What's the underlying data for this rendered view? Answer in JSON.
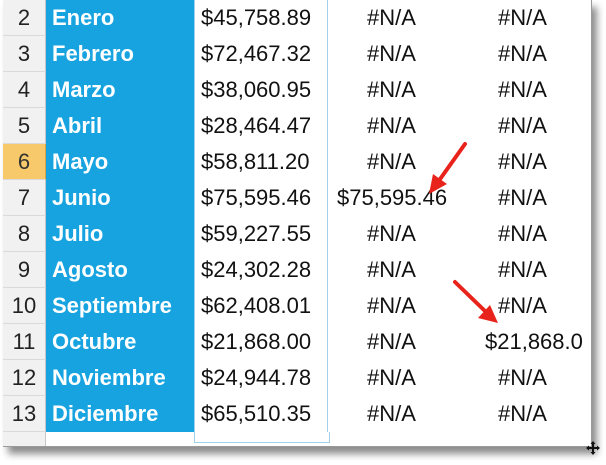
{
  "rows": [
    {
      "num": "2",
      "month": "Enero",
      "amount": "$45,758.89",
      "col3": "#N/A",
      "col4": "#N/A"
    },
    {
      "num": "3",
      "month": "Febrero",
      "amount": "$72,467.32",
      "col3": "#N/A",
      "col4": "#N/A"
    },
    {
      "num": "4",
      "month": "Marzo",
      "amount": "$38,060.95",
      "col3": "#N/A",
      "col4": "#N/A"
    },
    {
      "num": "5",
      "month": "Abril",
      "amount": "$28,464.47",
      "col3": "#N/A",
      "col4": "#N/A"
    },
    {
      "num": "6",
      "month": "Mayo",
      "amount": "$58,811.20",
      "col3": "#N/A",
      "col4": "#N/A"
    },
    {
      "num": "7",
      "month": "Junio",
      "amount": "$75,595.46",
      "col3": "$75,595.46",
      "col4": "#N/A"
    },
    {
      "num": "8",
      "month": "Julio",
      "amount": "$59,227.55",
      "col3": "#N/A",
      "col4": "#N/A"
    },
    {
      "num": "9",
      "month": "Agosto",
      "amount": "$24,302.28",
      "col3": "#N/A",
      "col4": "#N/A"
    },
    {
      "num": "10",
      "month": "Septiembre",
      "amount": "$62,408.01",
      "col3": "#N/A",
      "col4": "#N/A"
    },
    {
      "num": "11",
      "month": "Octubre",
      "amount": "$21,868.00",
      "col3": "#N/A",
      "col4": "$21,868.0"
    },
    {
      "num": "12",
      "month": "Noviembre",
      "amount": "$24,944.78",
      "col3": "#N/A",
      "col4": "#N/A"
    },
    {
      "num": "13",
      "month": "Diciembre",
      "amount": "$65,510.35",
      "col3": "#N/A",
      "col4": "#N/A"
    }
  ],
  "selected_row": "6",
  "colors": {
    "month_fill": "#16a3e0",
    "arrow": "#e8231b",
    "selected_header": "#f7c96a"
  }
}
